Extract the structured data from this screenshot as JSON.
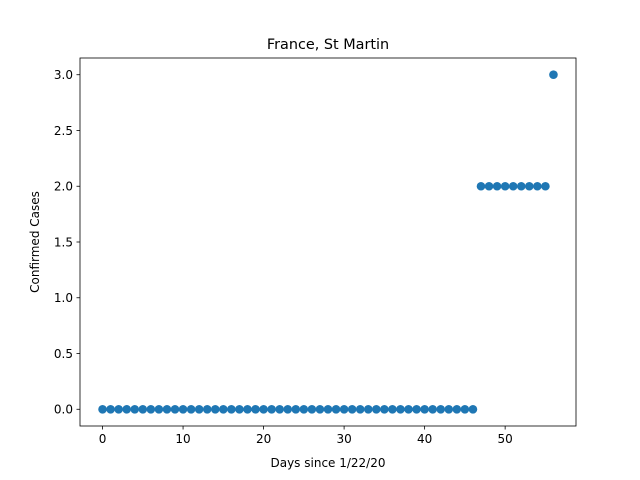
{
  "chart_data": {
    "type": "scatter",
    "title": "France, St Martin",
    "xlabel": "Days since 1/22/20",
    "ylabel": "Confirmed Cases",
    "xlim": [
      -2.8,
      58.8
    ],
    "ylim": [
      -0.15,
      3.15
    ],
    "xticks": [
      0,
      10,
      20,
      30,
      40,
      50
    ],
    "xtick_labels": [
      "0",
      "10",
      "20",
      "30",
      "40",
      "50"
    ],
    "yticks": [
      0.0,
      0.5,
      1.0,
      1.5,
      2.0,
      2.5,
      3.0
    ],
    "ytick_labels": [
      "0.0",
      "0.5",
      "1.0",
      "1.5",
      "2.0",
      "2.5",
      "3.0"
    ],
    "grid": false,
    "marker_color": "#1f77b4",
    "x": [
      0,
      1,
      2,
      3,
      4,
      5,
      6,
      7,
      8,
      9,
      10,
      11,
      12,
      13,
      14,
      15,
      16,
      17,
      18,
      19,
      20,
      21,
      22,
      23,
      24,
      25,
      26,
      27,
      28,
      29,
      30,
      31,
      32,
      33,
      34,
      35,
      36,
      37,
      38,
      39,
      40,
      41,
      42,
      43,
      44,
      45,
      46,
      47,
      48,
      49,
      50,
      51,
      52,
      53,
      54,
      55,
      56
    ],
    "y": [
      0,
      0,
      0,
      0,
      0,
      0,
      0,
      0,
      0,
      0,
      0,
      0,
      0,
      0,
      0,
      0,
      0,
      0,
      0,
      0,
      0,
      0,
      0,
      0,
      0,
      0,
      0,
      0,
      0,
      0,
      0,
      0,
      0,
      0,
      0,
      0,
      0,
      0,
      0,
      0,
      0,
      0,
      0,
      0,
      0,
      0,
      0,
      2,
      2,
      2,
      2,
      2,
      2,
      2,
      2,
      2,
      3
    ]
  }
}
